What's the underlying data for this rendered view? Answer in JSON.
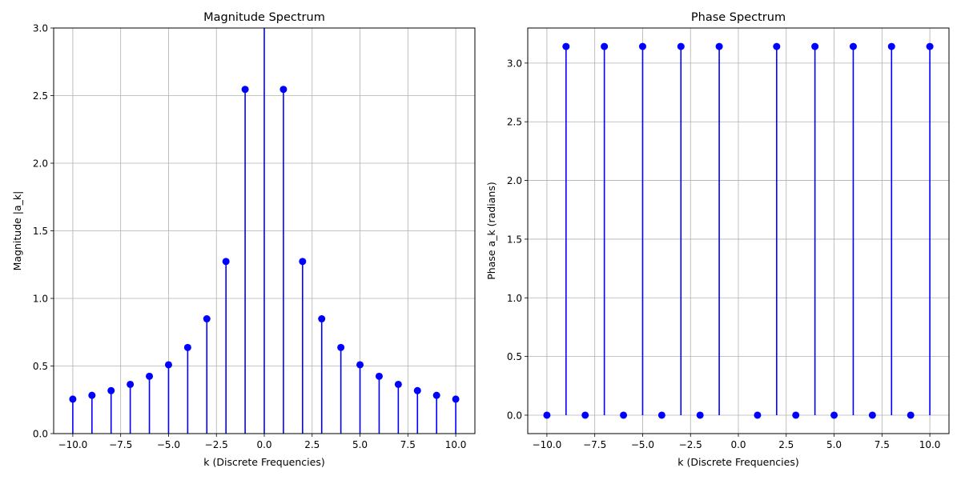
{
  "chart_data": [
    {
      "type": "stem",
      "title": "Magnitude Spectrum",
      "xlabel": "k (Discrete Frequencies)",
      "ylabel": "Magnitude |a_k|",
      "xlim": [
        -11,
        11
      ],
      "ylim": [
        0,
        3.0
      ],
      "grid": true,
      "color": "#0000ff",
      "xticks": [
        -10.0,
        -7.5,
        -5.0,
        -2.5,
        0.0,
        2.5,
        5.0,
        7.5,
        10.0
      ],
      "xtick_labels": [
        "−10.0",
        "−7.5",
        "−5.0",
        "−2.5",
        "0.0",
        "2.5",
        "5.0",
        "7.5",
        "10.0"
      ],
      "yticks": [
        0.0,
        0.5,
        1.0,
        1.5,
        2.0,
        2.5,
        3.0
      ],
      "ytick_labels": [
        "0.0",
        "0.5",
        "1.0",
        "1.5",
        "2.0",
        "2.5",
        "3.0"
      ],
      "x": [
        -10,
        -9,
        -8,
        -7,
        -6,
        -5,
        -4,
        -3,
        -2,
        -1,
        0,
        1,
        2,
        3,
        4,
        5,
        6,
        7,
        8,
        9,
        10
      ],
      "y": [
        0.255,
        0.283,
        0.318,
        0.364,
        0.424,
        0.509,
        0.637,
        0.849,
        1.273,
        2.546,
        3.2,
        2.546,
        1.273,
        0.849,
        0.637,
        0.509,
        0.424,
        0.364,
        0.318,
        0.283,
        0.255
      ],
      "markers": [
        true,
        true,
        true,
        true,
        true,
        true,
        true,
        true,
        true,
        true,
        false,
        true,
        true,
        true,
        true,
        true,
        true,
        true,
        true,
        true,
        true
      ]
    },
    {
      "type": "stem",
      "title": "Phase Spectrum",
      "xlabel": "k (Discrete Frequencies)",
      "ylabel": "Phase a_k (radians)",
      "xlim": [
        -11,
        11
      ],
      "ylim": [
        -0.157,
        3.299
      ],
      "grid": true,
      "color": "#0000ff",
      "xticks": [
        -10.0,
        -7.5,
        -5.0,
        -2.5,
        0.0,
        2.5,
        5.0,
        7.5,
        10.0
      ],
      "xtick_labels": [
        "−10.0",
        "−7.5",
        "−5.0",
        "−2.5",
        "0.0",
        "2.5",
        "5.0",
        "7.5",
        "10.0"
      ],
      "yticks": [
        0.0,
        0.5,
        1.0,
        1.5,
        2.0,
        2.5,
        3.0
      ],
      "ytick_labels": [
        "0.0",
        "0.5",
        "1.0",
        "1.5",
        "2.0",
        "2.5",
        "3.0"
      ],
      "x": [
        -10,
        -9,
        -8,
        -7,
        -6,
        -5,
        -4,
        -3,
        -2,
        -1,
        1,
        2,
        3,
        4,
        5,
        6,
        7,
        8,
        9,
        10
      ],
      "y": [
        0,
        3.1416,
        0,
        3.1416,
        0,
        3.1416,
        0,
        3.1416,
        0,
        3.1416,
        0,
        3.1416,
        0,
        3.1416,
        0,
        3.1416,
        0,
        3.1416,
        0,
        3.1416
      ],
      "markers": [
        true,
        true,
        true,
        true,
        true,
        true,
        true,
        true,
        true,
        true,
        true,
        true,
        true,
        true,
        true,
        true,
        true,
        true,
        true,
        true
      ]
    }
  ]
}
